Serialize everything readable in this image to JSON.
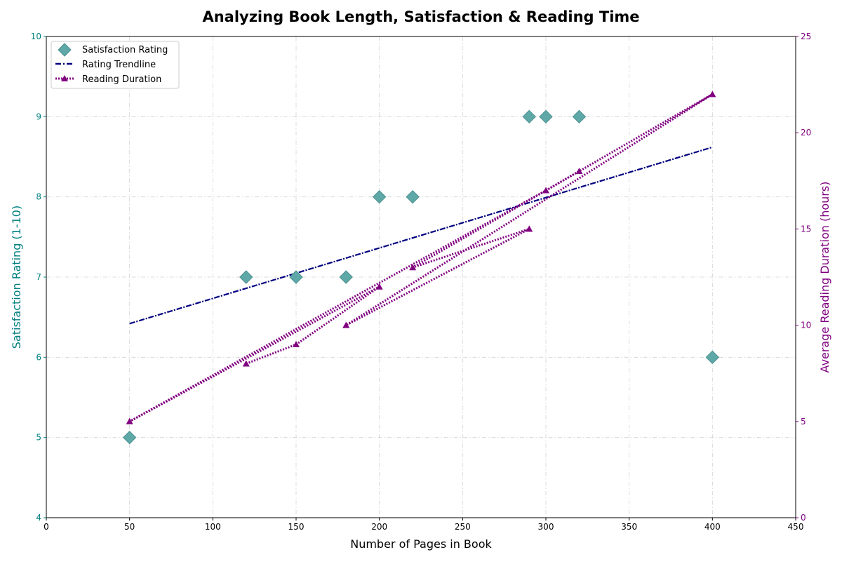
{
  "chart_data": {
    "type": "scatter",
    "title": "Analyzing Book Length, Satisfaction & Reading Time",
    "xlabel": "Number of Pages in Book",
    "ylabel": "Satisfaction Rating (1-10)",
    "y2label": "Average Reading Duration (hours)",
    "xlim": [
      0,
      450
    ],
    "ylim": [
      4,
      10
    ],
    "y2lim": [
      0,
      25
    ],
    "xticks": [
      0,
      50,
      100,
      150,
      200,
      250,
      300,
      350,
      400,
      450
    ],
    "yticks": [
      4,
      5,
      6,
      7,
      8,
      9,
      10
    ],
    "y2ticks": [
      0,
      5,
      10,
      15,
      20,
      25
    ],
    "grid": true,
    "legend_position": "upper-left",
    "colors": {
      "scatter": "#5fa8a8",
      "scatter_edge": "#4a9090",
      "trend": "#000080",
      "duration": "#800080",
      "left_axis": "#008080",
      "right_axis": "#800080",
      "grid": "#d3d3d3"
    },
    "series": [
      {
        "name": "Satisfaction Rating",
        "kind": "scatter",
        "axis": "left",
        "marker": "diamond",
        "x": [
          120,
          150,
          200,
          50,
          300,
          400,
          180,
          290,
          220,
          320
        ],
        "y": [
          7,
          7,
          8,
          5,
          9,
          6,
          7,
          9,
          8,
          9
        ]
      },
      {
        "name": "Rating Trendline",
        "kind": "line",
        "axis": "left",
        "style": "dashdot",
        "x": [
          50,
          400
        ],
        "y": [
          6.42,
          8.62
        ]
      },
      {
        "name": "Reading Duration",
        "kind": "line",
        "axis": "right",
        "style": "dotted",
        "marker": "triangle",
        "x": [
          120,
          150,
          200,
          50,
          300,
          400,
          180,
          290,
          220,
          320
        ],
        "y": [
          8,
          9,
          12,
          5,
          17,
          22,
          10,
          15,
          13,
          18
        ]
      }
    ]
  }
}
